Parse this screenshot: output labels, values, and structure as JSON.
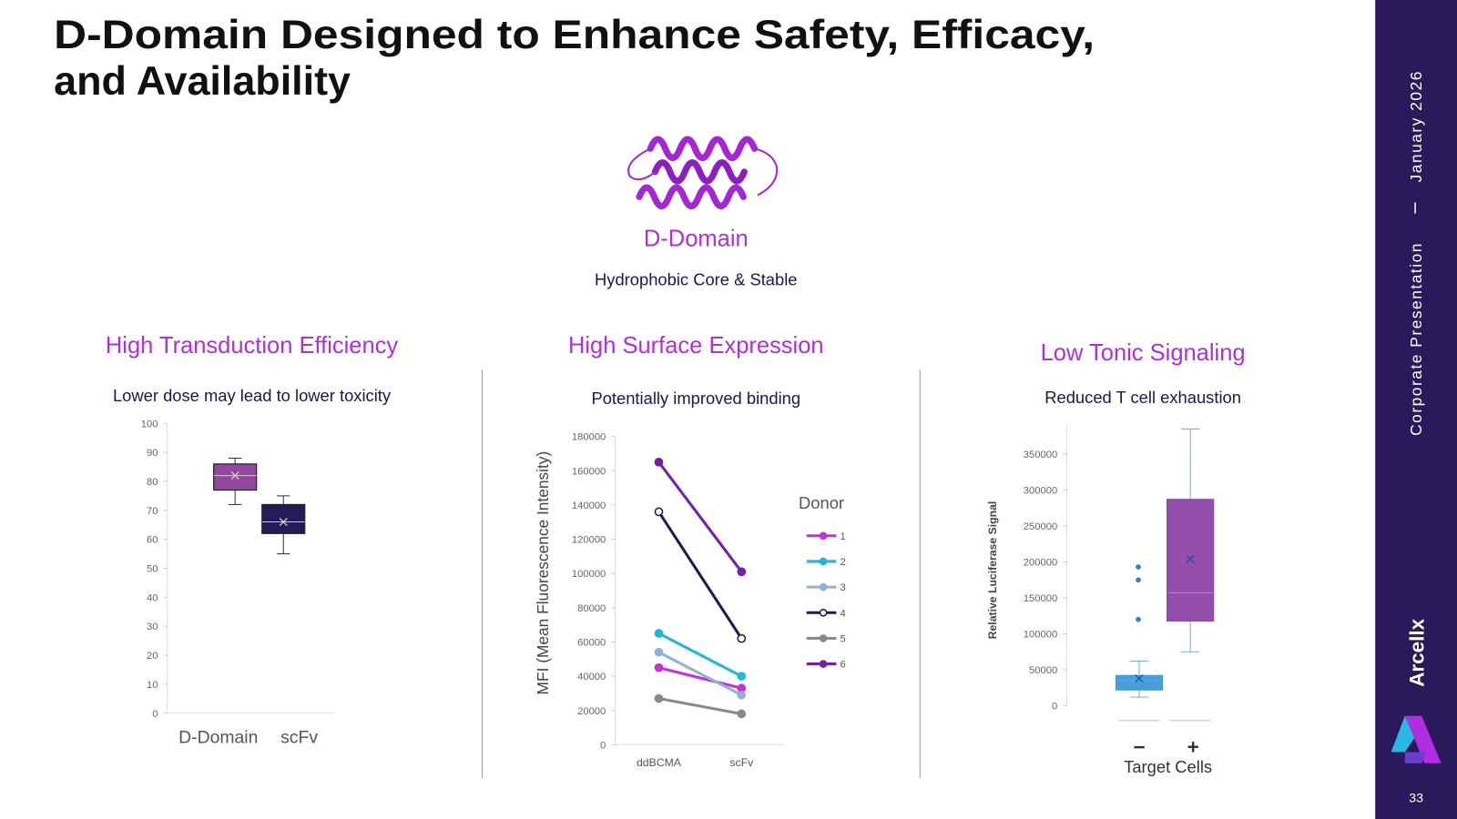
{
  "header": {
    "title_lines": [
      "D-Domain Designed to Enhance Safety, Efficacy,",
      "and Availability"
    ]
  },
  "center": {
    "heading": "D-Domain",
    "subtitle": "Hydrophobic Core & Stable"
  },
  "panels": [
    {
      "heading": "High Transduction Efficiency",
      "subtitle": "Lower dose may lead to lower toxicity"
    },
    {
      "heading": "High Surface Expression",
      "subtitle": "Potentially improved binding"
    },
    {
      "heading": "Low Tonic Signaling",
      "subtitle": "Reduced T cell exhaustion"
    }
  ],
  "sidebar": {
    "date": "January 2026",
    "section": "Corporate Presentation",
    "brand": "Arcellx",
    "page": "33"
  },
  "chart_data": [
    {
      "type": "box",
      "categories": [
        "D-Domain",
        "scFv"
      ],
      "min": [
        72,
        55
      ],
      "q1": [
        77,
        62
      ],
      "median": [
        82,
        66
      ],
      "q3": [
        86,
        72
      ],
      "max": [
        88,
        75
      ],
      "mean": [
        82,
        66
      ],
      "colors": [
        "#93479f",
        "#231b5a"
      ],
      "ylim": [
        0,
        100
      ],
      "yticks": [
        0,
        10,
        20,
        30,
        40,
        50,
        60,
        70,
        80,
        90,
        100
      ]
    },
    {
      "type": "line",
      "categories": [
        "ddBCMA",
        "scFv"
      ],
      "y_label": "MFI (Mean Fluorescence Intensity)",
      "legend_title": "Donor",
      "series": [
        {
          "name": "1",
          "color": "#c630d8",
          "values": [
            45000,
            33000
          ]
        },
        {
          "name": "2",
          "color": "#22b6d9",
          "values": [
            65000,
            40000
          ]
        },
        {
          "name": "3",
          "color": "#92b2d2",
          "values": [
            54000,
            29000
          ]
        },
        {
          "name": "4",
          "color": "#1f1a50",
          "values": [
            136000,
            62000
          ],
          "marker": "open"
        },
        {
          "name": "5",
          "color": "#8a8a8a",
          "values": [
            27000,
            18000
          ]
        },
        {
          "name": "6",
          "color": "#7420a6",
          "values": [
            165000,
            101000
          ]
        }
      ],
      "ylim": [
        0,
        180000
      ],
      "yticks": [
        0,
        20000,
        40000,
        60000,
        80000,
        100000,
        120000,
        140000,
        160000,
        180000
      ]
    },
    {
      "type": "box",
      "categories": [
        "−",
        "+"
      ],
      "x_label": "Target Cells",
      "y_label": "Relative Luciferase Signal",
      "min": [
        12000,
        75000
      ],
      "q1": [
        22000,
        118000
      ],
      "median": [
        35000,
        157000
      ],
      "q3": [
        42000,
        287000
      ],
      "max": [
        62000,
        385000
      ],
      "mean": [
        38000,
        204000
      ],
      "outliers": [
        [
          120000,
          175000,
          193000
        ],
        []
      ],
      "colors": [
        "#3d9ad8",
        "#8e44a8"
      ],
      "ylim": [
        0,
        390000
      ],
      "yticks": [
        0,
        50000,
        100000,
        150000,
        200000,
        250000,
        300000,
        350000
      ]
    }
  ]
}
